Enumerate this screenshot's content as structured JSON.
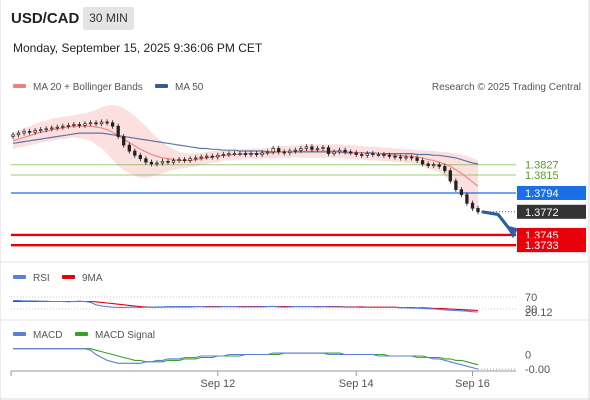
{
  "header": {
    "symbol": "USD/CAD",
    "timeframe": "30 MIN",
    "datetime": "Monday, September 15, 2025 9:36:06 PM CET"
  },
  "legend": {
    "ma20": "MA 20 + Bollinger Bands",
    "ma50": "MA 50",
    "credit": "Research © 2025 Trading Central",
    "rsi": "RSI",
    "rsi_ma": "9MA",
    "macd": "MACD",
    "macd_signal": "MACD Signal"
  },
  "colors": {
    "ma20": "#f08080",
    "ma50": "#3a5a96",
    "bollinger_fill": "#fbd5d5",
    "resistance": "#74b83e",
    "pivot": "#1a6ee8",
    "support": "#e8000b",
    "last_price": "#333333",
    "rsi": "#5b7fd6",
    "rsi_ma": "#e8000b",
    "macd": "#5b7fd6",
    "macd_signal": "#3aa02b",
    "arrow": "#2a5fa8"
  },
  "chart_data": [
    {
      "type": "candlestick",
      "name": "price",
      "ylim": [
        1.3718,
        1.3905
      ],
      "x_labels": [
        "Sep 12",
        "Sep 14",
        "Sep 16"
      ],
      "levels": [
        {
          "value": 1.3827,
          "label": "1.3827",
          "kind": "resistance"
        },
        {
          "value": 1.3815,
          "label": "1.3815",
          "kind": "resistance"
        },
        {
          "value": 1.3794,
          "label": "1.3794",
          "kind": "pivot"
        },
        {
          "value": 1.3772,
          "label": "1.3772",
          "kind": "last"
        },
        {
          "value": 1.3745,
          "label": "1.3745",
          "kind": "support"
        },
        {
          "value": 1.3733,
          "label": "1.3733",
          "kind": "support"
        }
      ],
      "close": [
        1.3862,
        1.3864,
        1.3866,
        1.3865,
        1.3867,
        1.3868,
        1.3869,
        1.387,
        1.3871,
        1.3872,
        1.3873,
        1.3874,
        1.3873,
        1.3875,
        1.3876,
        1.3875,
        1.3877,
        1.3876,
        1.3872,
        1.386,
        1.385,
        1.3843,
        1.3838,
        1.3834,
        1.383,
        1.3828,
        1.3829,
        1.3831,
        1.383,
        1.3832,
        1.3833,
        1.3832,
        1.3834,
        1.3835,
        1.3836,
        1.3837,
        1.3836,
        1.3838,
        1.3839,
        1.384,
        1.384,
        1.384,
        1.3839,
        1.384,
        1.3839,
        1.3841,
        1.3842,
        1.3846,
        1.3842,
        1.3841,
        1.3843,
        1.3844,
        1.3846,
        1.3848,
        1.3845,
        1.3846,
        1.3847,
        1.384,
        1.3842,
        1.3844,
        1.3842,
        1.3841,
        1.3839,
        1.3838,
        1.384,
        1.3839,
        1.3839,
        1.3838,
        1.3837,
        1.3836,
        1.3835,
        1.3836,
        1.3835,
        1.3832,
        1.3828,
        1.3826,
        1.3827,
        1.3825,
        1.382,
        1.3808,
        1.3798,
        1.3792,
        1.3782,
        1.3776,
        1.3772
      ],
      "ma20": [
        1.3855,
        1.3857,
        1.3859,
        1.3861,
        1.3863,
        1.3865,
        1.3866,
        1.3868,
        1.3869,
        1.387,
        1.3871,
        1.3872,
        1.3872,
        1.3872,
        1.3872,
        1.3871,
        1.387,
        1.3868,
        1.3865,
        1.3861,
        1.3857,
        1.3853,
        1.3849,
        1.3845,
        1.3842,
        1.3839,
        1.3837,
        1.3835,
        1.3834,
        1.3833,
        1.3832,
        1.3832,
        1.3832,
        1.3833,
        1.3834,
        1.3835,
        1.3836,
        1.3837,
        1.3838,
        1.3838,
        1.3839,
        1.3839,
        1.384,
        1.384,
        1.384,
        1.384,
        1.3841,
        1.3841,
        1.3842,
        1.3842,
        1.3842,
        1.3843,
        1.3843,
        1.3843,
        1.3843,
        1.3843,
        1.3843,
        1.3843,
        1.3843,
        1.3843,
        1.3842,
        1.3842,
        1.3841,
        1.3841,
        1.384,
        1.384,
        1.384,
        1.3839,
        1.3839,
        1.3838,
        1.3838,
        1.3837,
        1.3837,
        1.3836,
        1.3835,
        1.3833,
        1.3832,
        1.383,
        1.3828,
        1.3825,
        1.3821,
        1.3817,
        1.3812,
        1.3807,
        1.3802
      ],
      "ma50": [
        1.3852,
        1.3853,
        1.3854,
        1.3855,
        1.3856,
        1.3857,
        1.3858,
        1.3859,
        1.386,
        1.3861,
        1.3862,
        1.3863,
        1.3864,
        1.3864,
        1.3864,
        1.3864,
        1.3864,
        1.3863,
        1.3862,
        1.3861,
        1.386,
        1.3859,
        1.3858,
        1.3857,
        1.3856,
        1.3855,
        1.3854,
        1.3853,
        1.3852,
        1.3851,
        1.385,
        1.3849,
        1.3848,
        1.3847,
        1.3846,
        1.3846,
        1.3845,
        1.3845,
        1.3844,
        1.3844,
        1.3844,
        1.3843,
        1.3843,
        1.3843,
        1.3843,
        1.3843,
        1.3842,
        1.3842,
        1.3842,
        1.3842,
        1.3842,
        1.3842,
        1.3842,
        1.3842,
        1.3842,
        1.3842,
        1.3842,
        1.3842,
        1.3842,
        1.3842,
        1.3841,
        1.3841,
        1.3841,
        1.3841,
        1.3841,
        1.3841,
        1.384,
        1.384,
        1.384,
        1.384,
        1.384,
        1.384,
        1.384,
        1.3839,
        1.3839,
        1.3839,
        1.3838,
        1.3838,
        1.3837,
        1.3836,
        1.3835,
        1.3833,
        1.3831,
        1.3829,
        1.3828
      ],
      "bb_width": [
        0.001,
        0.001,
        0.0011,
        0.0011,
        0.0012,
        0.0012,
        0.0012,
        0.0013,
        0.0013,
        0.0013,
        0.0013,
        0.0013,
        0.0014,
        0.0015,
        0.0017,
        0.002,
        0.0024,
        0.0028,
        0.0032,
        0.0035,
        0.0036,
        0.0036,
        0.0035,
        0.0033,
        0.003,
        0.0026,
        0.0022,
        0.0018,
        0.0015,
        0.0012,
        0.001,
        0.0009,
        0.0008,
        0.0008,
        0.0007,
        0.0007,
        0.0007,
        0.0007,
        0.0006,
        0.0006,
        0.0006,
        0.0006,
        0.0006,
        0.0006,
        0.0006,
        0.0006,
        0.0006,
        0.0007,
        0.0007,
        0.0007,
        0.0007,
        0.0007,
        0.0008,
        0.0008,
        0.0008,
        0.0008,
        0.0008,
        0.0008,
        0.0008,
        0.0008,
        0.0008,
        0.0008,
        0.0008,
        0.0008,
        0.0008,
        0.0008,
        0.0008,
        0.0008,
        0.0008,
        0.0008,
        0.0008,
        0.0008,
        0.0008,
        0.0008,
        0.0009,
        0.001,
        0.0011,
        0.0012,
        0.0014,
        0.0016,
        0.0019,
        0.0022,
        0.0025,
        0.0028,
        0.003
      ],
      "forecast": [
        1.3772,
        1.3769,
        1.3748
      ]
    },
    {
      "type": "line",
      "name": "rsi",
      "ylim": [
        0,
        100
      ],
      "ticks": [
        {
          "value": 70,
          "label": "70"
        },
        {
          "value": 30,
          "label": "30"
        }
      ],
      "last_label": "20.12",
      "rsi": [
        58,
        58,
        57,
        57,
        57,
        56,
        56,
        55,
        55,
        55,
        54,
        55,
        56,
        55,
        52,
        44,
        40,
        38,
        36,
        35,
        35,
        36,
        36,
        35,
        36,
        36,
        37,
        37,
        38,
        38,
        38,
        38,
        38,
        38,
        38,
        37,
        37,
        37,
        38,
        38,
        38,
        37,
        37,
        37,
        37,
        37,
        38,
        39,
        37,
        36,
        37,
        38,
        38,
        38,
        38,
        37,
        38,
        37,
        37,
        37,
        36,
        36,
        36,
        35,
        36,
        35,
        35,
        35,
        36,
        35,
        34,
        34,
        33,
        33,
        32,
        31,
        30,
        29,
        27,
        26,
        25,
        24,
        23,
        21,
        20.12
      ],
      "ma": [
        55,
        55,
        55,
        55,
        55,
        55,
        55,
        55,
        55,
        55,
        55,
        55,
        55,
        55,
        55,
        54,
        52,
        50,
        48,
        46,
        44,
        42,
        40,
        38,
        37,
        36,
        36,
        36,
        37,
        37,
        37,
        37,
        37,
        38,
        38,
        38,
        38,
        38,
        38,
        38,
        38,
        38,
        38,
        38,
        38,
        38,
        38,
        38,
        38,
        38,
        38,
        38,
        38,
        38,
        38,
        38,
        38,
        38,
        38,
        38,
        37,
        37,
        37,
        37,
        36,
        36,
        36,
        36,
        36,
        36,
        35,
        35,
        35,
        34,
        34,
        33,
        32,
        32,
        31,
        30,
        29,
        28,
        27,
        26,
        25
      ]
    },
    {
      "type": "line",
      "name": "macd",
      "ylim": [
        -0.0012,
        0.001
      ],
      "ticks": [
        {
          "value": 0,
          "label": "0"
        }
      ],
      "last_label": "-0.00",
      "macd": [
        0.0004,
        0.0004,
        0.0004,
        0.0004,
        0.0004,
        0.0004,
        0.0004,
        0.0004,
        0.0004,
        0.0004,
        0.0004,
        0.0004,
        0.0004,
        0.0004,
        0.0003,
        0.0,
        -0.0002,
        -0.0004,
        -0.0005,
        -0.0006,
        -0.0006,
        -0.0006,
        -0.0006,
        -0.0006,
        -0.0005,
        -0.0005,
        -0.0004,
        -0.0004,
        -0.0003,
        -0.0003,
        -0.0003,
        -0.0002,
        -0.0002,
        -0.0002,
        -0.0001,
        -0.0001,
        -0.0001,
        -0.0001,
        -0.0001,
        0.0,
        0.0,
        0.0,
        0.0,
        0.0,
        0.0,
        0.0,
        0.0,
        0.0001,
        0.0001,
        0.0001,
        0.0001,
        0.0001,
        0.0001,
        0.0001,
        0.0001,
        0.0001,
        0.0001,
        0.0,
        0.0,
        0.0,
        0.0,
        0.0,
        0.0,
        0.0,
        0.0,
        0.0,
        -0.0001,
        -0.0001,
        -0.0001,
        -0.0001,
        -0.0001,
        -0.0001,
        -0.0001,
        -0.0002,
        -0.0002,
        -0.0002,
        -0.0003,
        -0.0003,
        -0.0004,
        -0.0005,
        -0.0006,
        -0.0007,
        -0.0008,
        -0.0009,
        -0.001
      ],
      "signal": [
        0.0004,
        0.0004,
        0.0004,
        0.0004,
        0.0004,
        0.0004,
        0.0004,
        0.0004,
        0.0004,
        0.0004,
        0.0004,
        0.0004,
        0.0004,
        0.0004,
        0.0004,
        0.0003,
        0.0002,
        0.0001,
        0.0,
        -0.0001,
        -0.0002,
        -0.0003,
        -0.0004,
        -0.0004,
        -0.0005,
        -0.0005,
        -0.0005,
        -0.0005,
        -0.0004,
        -0.0004,
        -0.0004,
        -0.0003,
        -0.0003,
        -0.0003,
        -0.0002,
        -0.0002,
        -0.0002,
        -0.0001,
        -0.0001,
        -0.0001,
        -0.0001,
        -0.0001,
        0.0,
        0.0,
        0.0,
        0.0,
        0.0,
        0.0,
        0.0,
        0.0001,
        0.0001,
        0.0001,
        0.0001,
        0.0001,
        0.0001,
        0.0001,
        0.0001,
        0.0001,
        0.0001,
        0.0001,
        0.0,
        0.0,
        0.0,
        0.0,
        0.0,
        0.0,
        0.0,
        0.0,
        -0.0001,
        -0.0001,
        -0.0001,
        -0.0001,
        -0.0001,
        -0.0001,
        -0.0001,
        -0.0002,
        -0.0002,
        -0.0002,
        -0.0003,
        -0.0003,
        -0.0004,
        -0.0004,
        -0.0005,
        -0.0006,
        -0.0007
      ]
    }
  ]
}
